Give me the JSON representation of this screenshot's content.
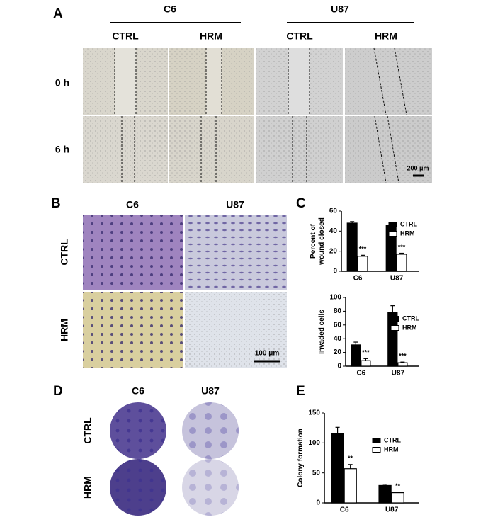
{
  "figure": {
    "panel_labels": [
      "A",
      "B",
      "C",
      "D",
      "E"
    ],
    "a": {
      "groups": [
        "C6",
        "U87"
      ],
      "conditions": [
        "CTRL",
        "HRM",
        "CTRL",
        "HRM"
      ],
      "times": [
        "0 h",
        "6 h"
      ],
      "scale": "200 μm"
    },
    "b": {
      "columns": [
        "C6",
        "U87"
      ],
      "rows": [
        "CTRL",
        "HRM"
      ],
      "scale": "100 μm"
    },
    "d": {
      "columns": [
        "C6",
        "U87"
      ],
      "rows": [
        "CTRL",
        "HRM"
      ]
    }
  },
  "chart_data": [
    {
      "type": "bar",
      "y_label": [
        "Percent of",
        "wound closed"
      ],
      "categories": [
        "C6",
        "U87"
      ],
      "series": [
        {
          "name": "CTRL",
          "color": "#000000",
          "values": [
            48,
            46
          ],
          "errors": [
            1.5,
            1.5
          ]
        },
        {
          "name": "HRM",
          "color": "#ffffff",
          "values": [
            15,
            17
          ],
          "errors": [
            1,
            1
          ],
          "markers": [
            "***",
            "***"
          ]
        }
      ],
      "ylim": [
        0,
        60
      ],
      "yticks": [
        0,
        20,
        40,
        60
      ],
      "legend": "upper right"
    },
    {
      "type": "bar",
      "y_label": [
        "Invaded cells"
      ],
      "categories": [
        "C6",
        "U87"
      ],
      "series": [
        {
          "name": "CTRL",
          "color": "#000000",
          "values": [
            31,
            78
          ],
          "errors": [
            4,
            10
          ]
        },
        {
          "name": "HRM",
          "color": "#ffffff",
          "values": [
            8,
            5
          ],
          "errors": [
            3,
            1
          ],
          "markers": [
            "***",
            "***"
          ]
        }
      ],
      "ylim": [
        0,
        100
      ],
      "yticks": [
        0,
        20,
        40,
        60,
        80,
        100
      ],
      "legend": "upper right"
    },
    {
      "type": "bar",
      "y_label": [
        "Colony formation"
      ],
      "categories": [
        "C6",
        "U87"
      ],
      "series": [
        {
          "name": "CTRL",
          "color": "#000000",
          "values": [
            116,
            29
          ],
          "errors": [
            10,
            2
          ]
        },
        {
          "name": "HRM",
          "color": "#ffffff",
          "values": [
            57,
            17
          ],
          "errors": [
            7,
            1
          ],
          "markers": [
            "**",
            "**"
          ]
        }
      ],
      "ylim": [
        0,
        150
      ],
      "yticks": [
        0,
        50,
        100,
        150
      ],
      "legend": "upper right"
    }
  ]
}
